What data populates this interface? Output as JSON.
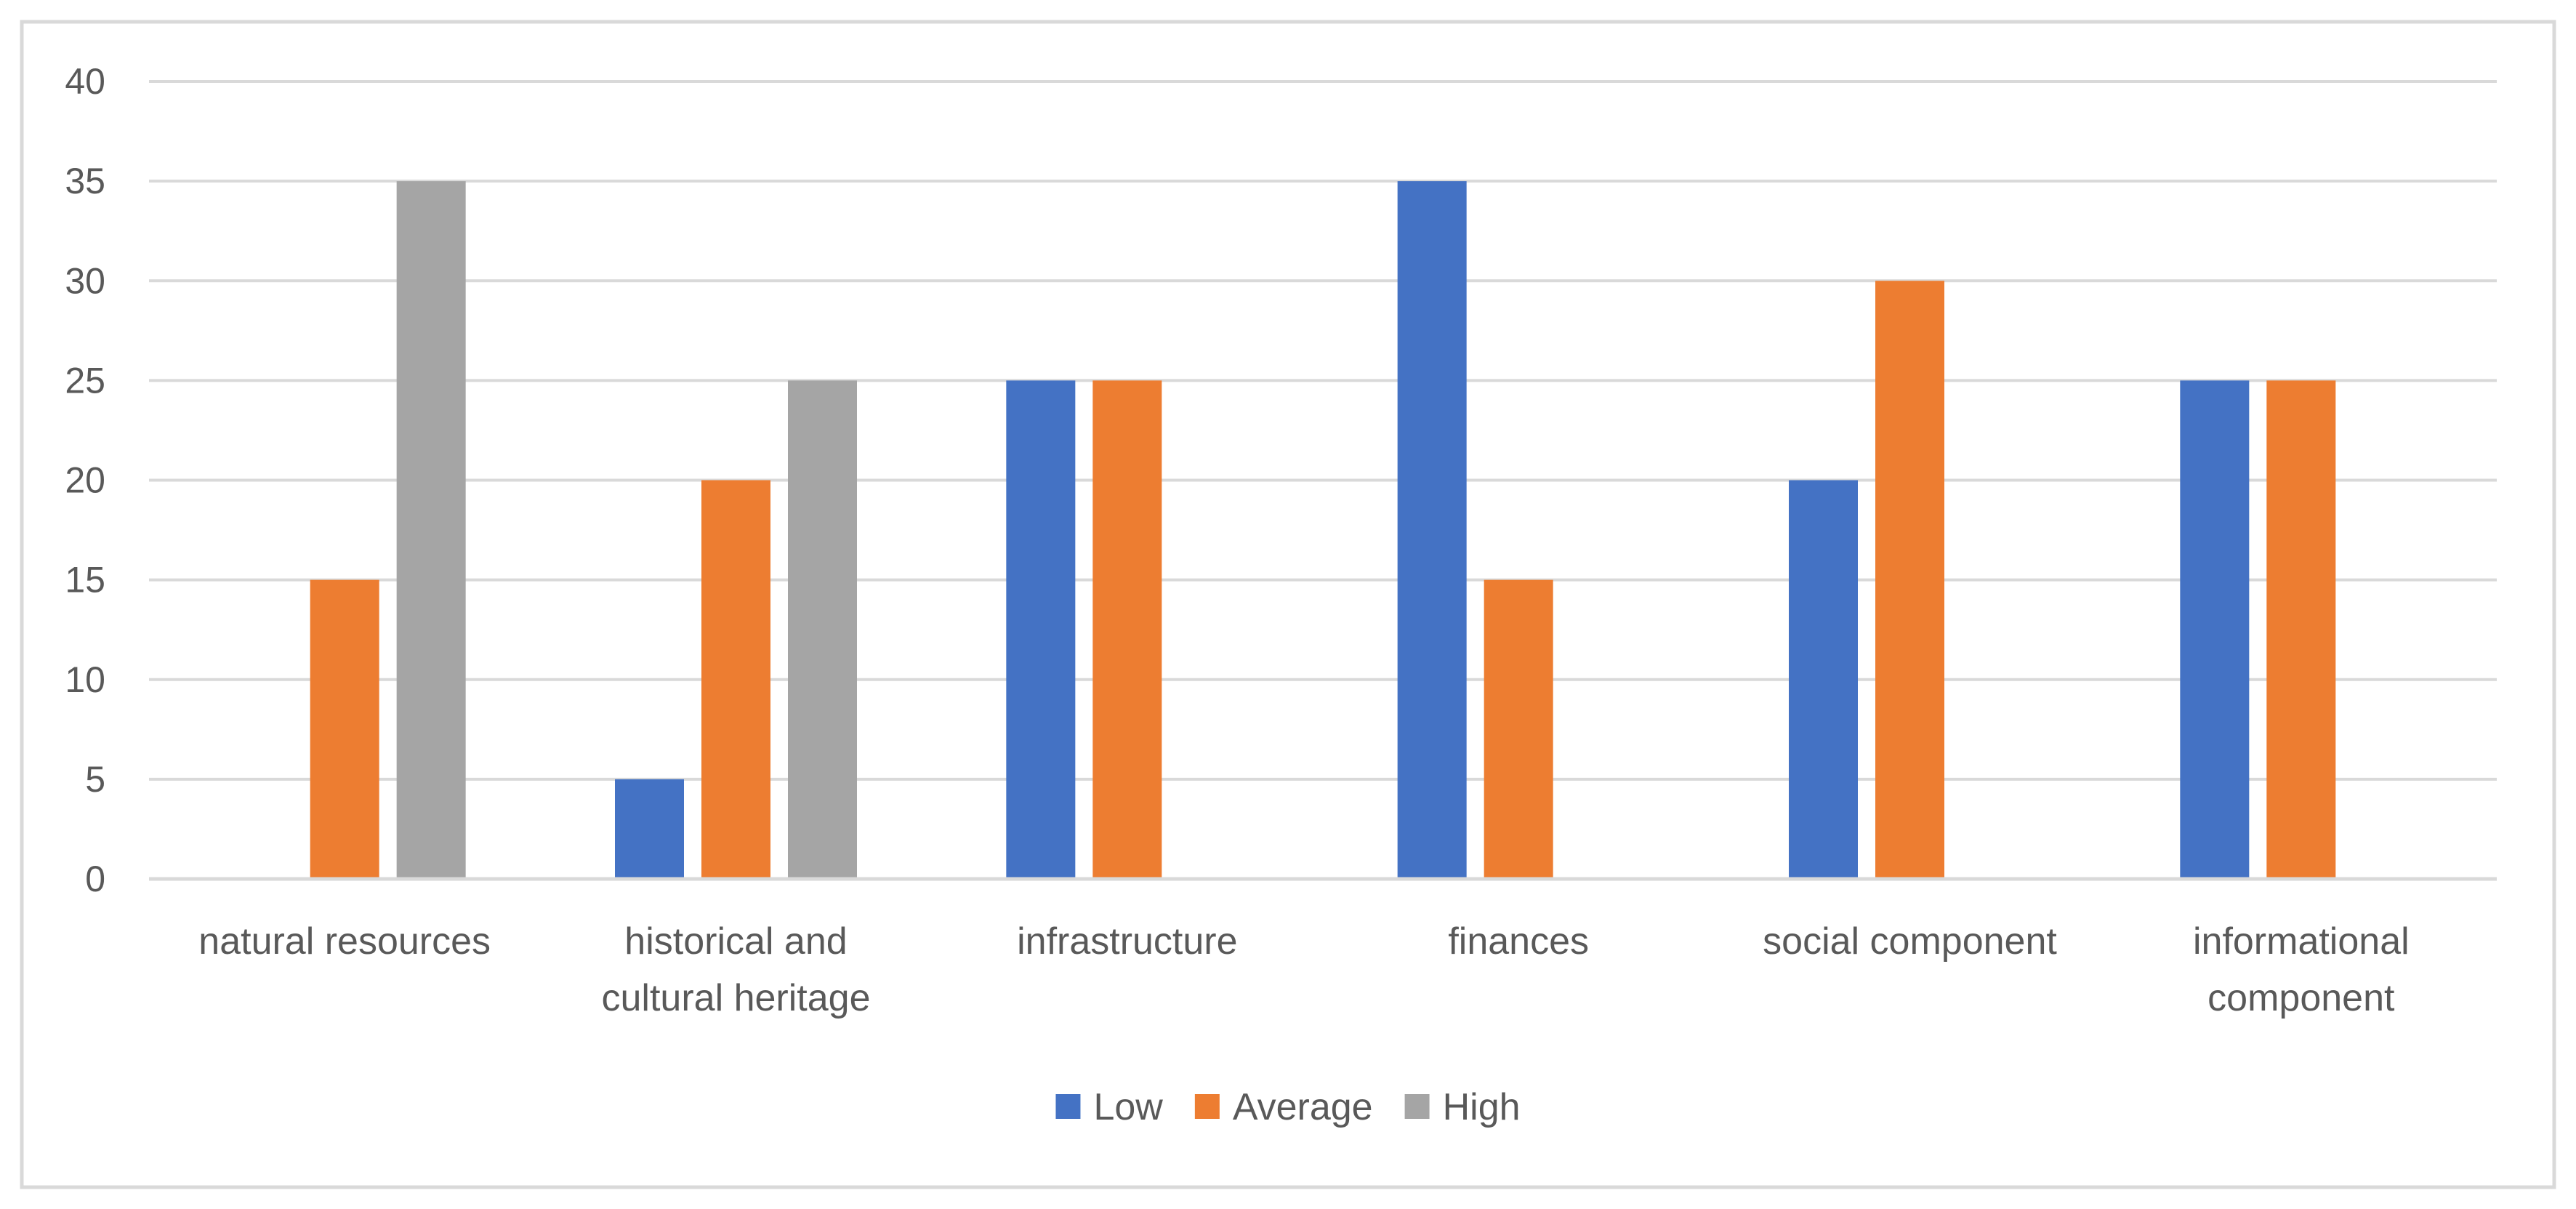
{
  "chart_data": {
    "type": "bar",
    "title": "",
    "xlabel": "",
    "ylabel": "",
    "ylim": [
      0,
      40
    ],
    "yticks": [
      0,
      5,
      10,
      15,
      20,
      25,
      30,
      35,
      40
    ],
    "grid": true,
    "legend_position": "bottom",
    "categories": [
      [
        "natural resources"
      ],
      [
        "historical and",
        "cultural heritage"
      ],
      [
        "infrastructure"
      ],
      [
        "finances"
      ],
      [
        "social component"
      ],
      [
        "informational",
        "component"
      ]
    ],
    "series": [
      {
        "name": "Low",
        "color": "#4472c4",
        "values": [
          0,
          5,
          25,
          35,
          20,
          25
        ]
      },
      {
        "name": "Average",
        "color": "#ed7d31",
        "values": [
          15,
          20,
          25,
          15,
          30,
          25
        ]
      },
      {
        "name": "High",
        "color": "#a5a5a5",
        "values": [
          35,
          25,
          0,
          0,
          0,
          0
        ]
      }
    ]
  }
}
